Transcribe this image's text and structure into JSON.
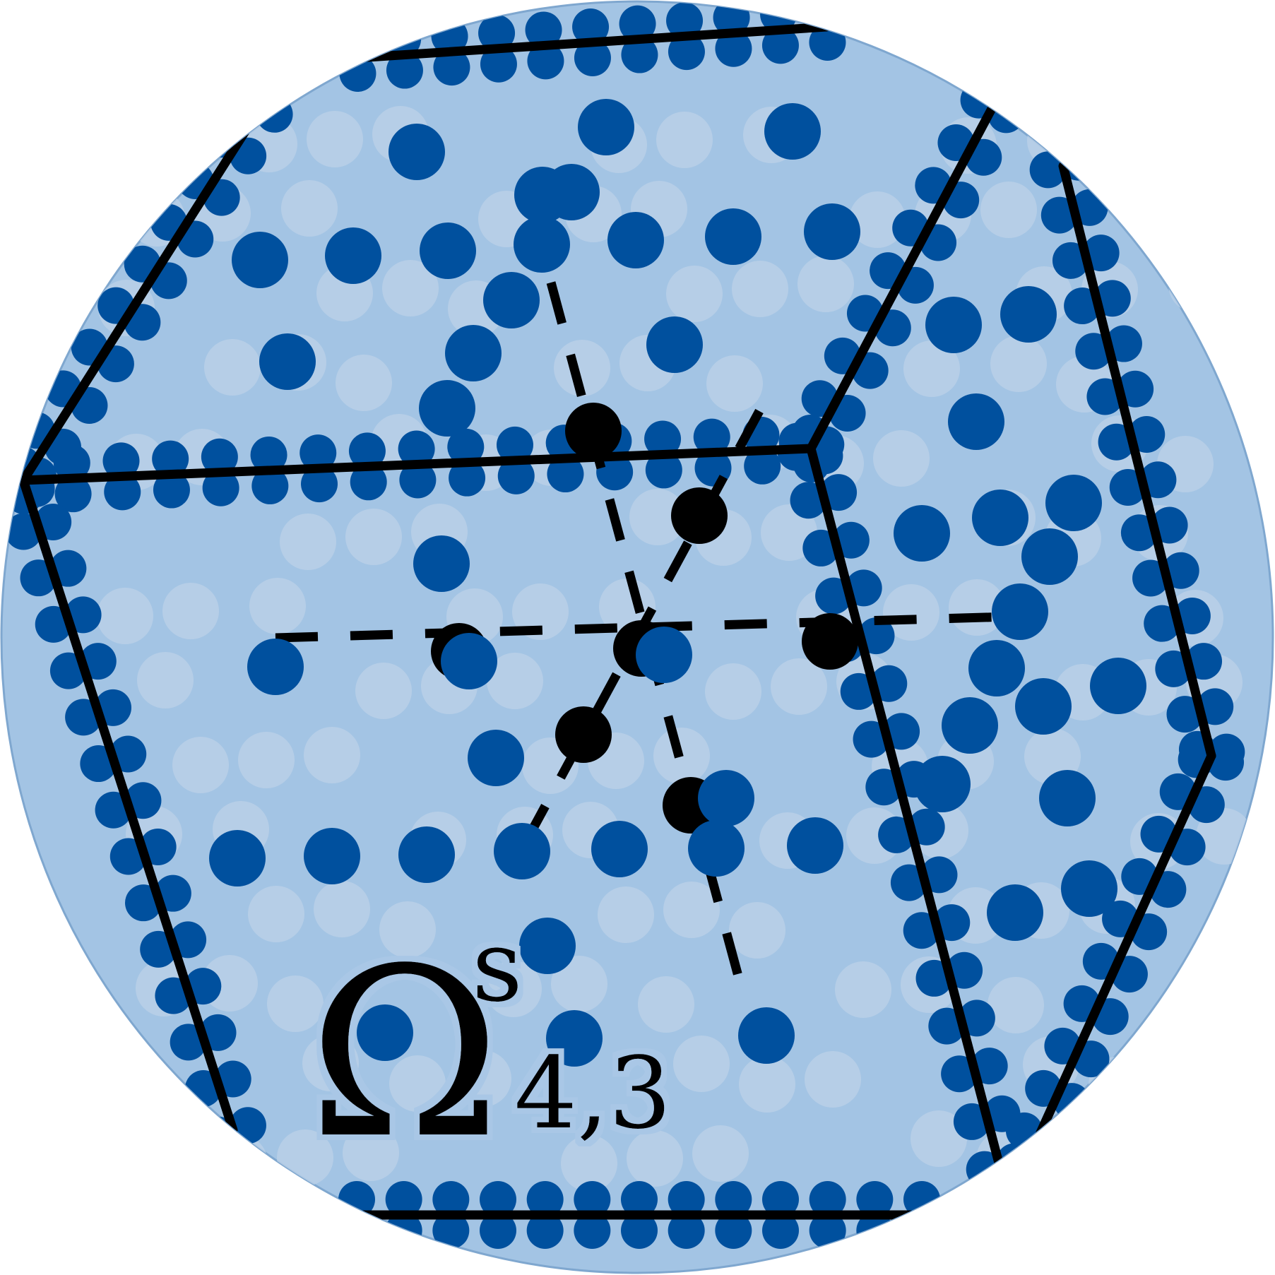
{
  "label": {
    "symbol": "Ω",
    "superscript": "s",
    "subscript": "4,3"
  },
  "colors": {
    "disc_fill": "#a3c4e4",
    "disc_stroke": "#7fa7cf",
    "dot_dark": "#00509e",
    "dot_faint": "#bcd2e8",
    "edge": "#000000",
    "lattice_node": "#000000"
  },
  "description_icons": {
    "disc": "lattice-disc",
    "edges": "polyhedron-edge",
    "dots": "particle-dot"
  }
}
